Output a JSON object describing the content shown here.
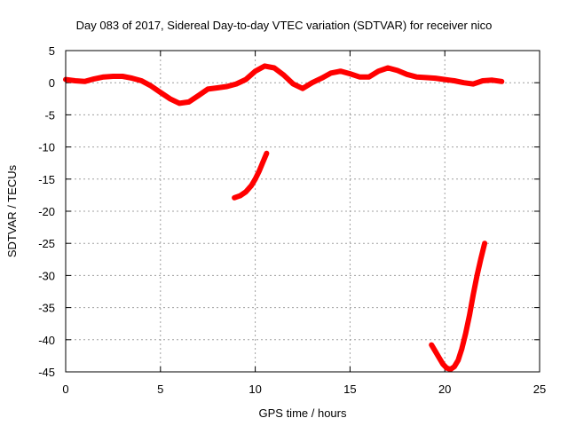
{
  "chart_data": {
    "type": "scatter",
    "title": "Day 083 of 2017, Sidereal Day-to-day VTEC variation (SDTVAR) for receiver nico",
    "xlabel": "GPS time / hours",
    "ylabel": "SDTVAR / TECUs",
    "xlim": [
      0,
      25
    ],
    "ylim": [
      -45,
      5
    ],
    "xticks": [
      0,
      5,
      10,
      15,
      20,
      25
    ],
    "yticks": [
      5,
      0,
      -5,
      -10,
      -15,
      -20,
      -25,
      -30,
      -35,
      -40,
      -45
    ],
    "grid": true,
    "color": "#ff0000",
    "series": [
      {
        "x": [
          0.0,
          0.5,
          1.0,
          1.5,
          2.0,
          2.5,
          3.0,
          3.5,
          4.0,
          4.5,
          5.0,
          5.5,
          6.0,
          6.5,
          7.0,
          7.5,
          8.0,
          8.5,
          9.0,
          9.5,
          10.0,
          10.5,
          11.0,
          11.5,
          12.0,
          12.5,
          13.0,
          13.5,
          14.0,
          14.5,
          15.0,
          15.5,
          16.0,
          16.5,
          17.0,
          17.5,
          18.0,
          18.5,
          19.0,
          19.5,
          20.0,
          20.5,
          21.0,
          21.5,
          22.0,
          22.5,
          23.0
        ],
        "y": [
          0.5,
          0.3,
          0.2,
          0.6,
          0.9,
          1.0,
          1.0,
          0.7,
          0.3,
          -0.5,
          -1.5,
          -2.5,
          -3.2,
          -3.0,
          -2.0,
          -1.0,
          -0.8,
          -0.6,
          -0.2,
          0.5,
          1.8,
          2.6,
          2.3,
          1.2,
          -0.2,
          -0.9,
          0.0,
          0.7,
          1.5,
          1.8,
          1.4,
          0.9,
          0.9,
          1.8,
          2.3,
          1.9,
          1.3,
          0.9,
          0.8,
          0.7,
          0.5,
          0.3,
          0.0,
          -0.2,
          0.3,
          0.4,
          0.2
        ]
      },
      {
        "x": [
          8.9,
          9.2,
          9.5,
          9.8,
          10.0,
          10.2,
          10.4,
          10.6
        ],
        "y": [
          -17.9,
          -17.6,
          -17.0,
          -16.0,
          -15.0,
          -13.8,
          -12.4,
          -11.0
        ]
      },
      {
        "x": [
          19.3,
          19.5,
          19.7,
          19.9,
          20.1,
          20.3,
          20.5,
          20.7,
          20.9,
          21.1,
          21.3,
          21.5,
          21.7,
          21.9,
          22.1
        ],
        "y": [
          -40.8,
          -41.8,
          -42.8,
          -43.8,
          -44.4,
          -44.6,
          -44.2,
          -43.2,
          -41.4,
          -39.0,
          -36.2,
          -33.0,
          -30.0,
          -27.4,
          -25.0
        ]
      }
    ]
  }
}
